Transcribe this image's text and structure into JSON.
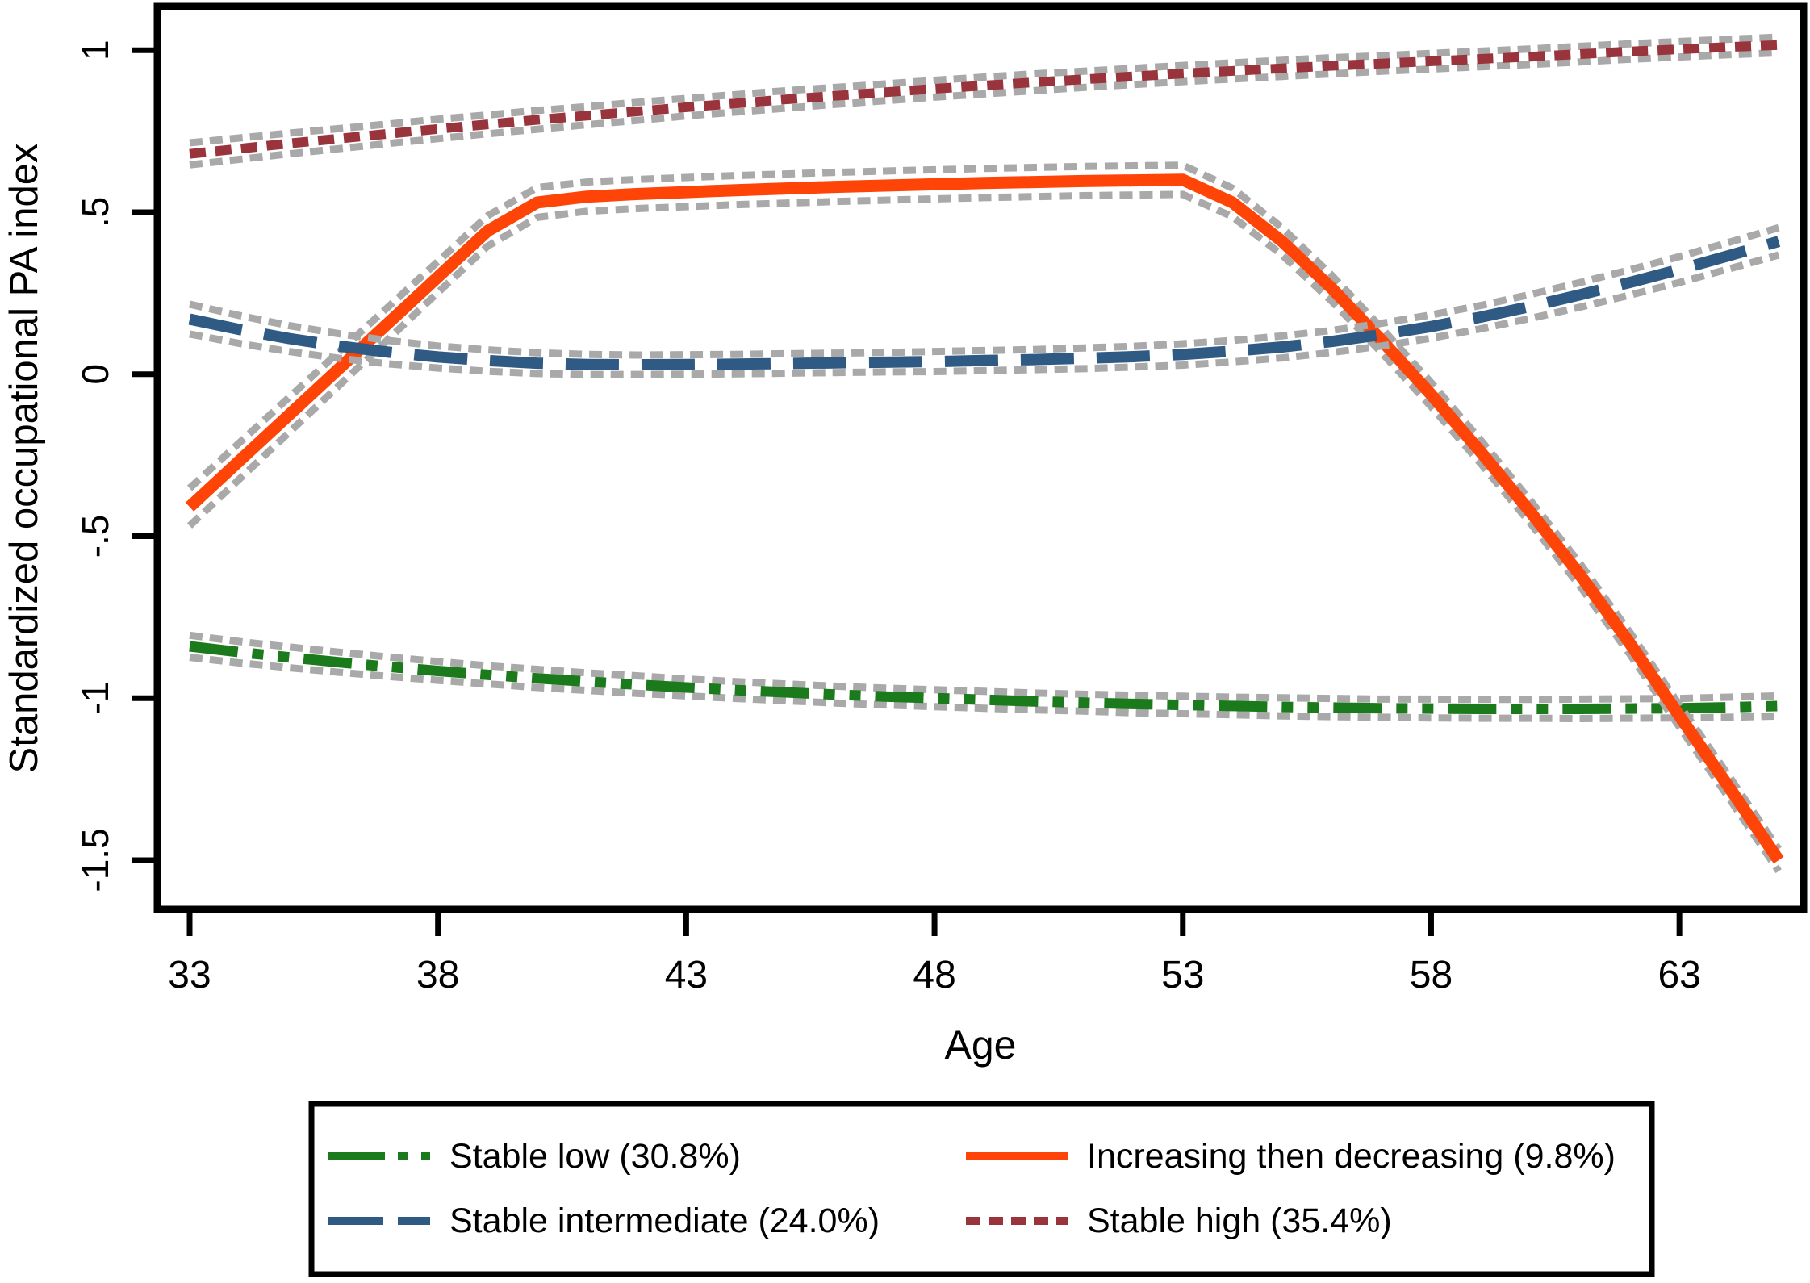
{
  "chart_data": {
    "type": "line",
    "title": "",
    "xlabel": "Age",
    "ylabel": "Standardized occupational PA index",
    "grid": false,
    "legend_position": "bottom",
    "xlim": [
      32.35,
      65.5
    ],
    "ylim": [
      -1.652,
      1.135
    ],
    "x_ticks": [
      33,
      38,
      43,
      48,
      53,
      58,
      63
    ],
    "y_ticks": [
      {
        "value": 1,
        "label": "1"
      },
      {
        "value": 0.5,
        "label": ".5"
      },
      {
        "value": 0,
        "label": "0"
      },
      {
        "value": -0.5,
        "label": "-.5"
      },
      {
        "value": -1,
        "label": "-1"
      },
      {
        "value": -1.5,
        "label": "-1.5"
      }
    ],
    "ci_style": {
      "color": "#a9a9a9",
      "width": 9,
      "dash": "16 9",
      "meaning": "95% confidence band (gray dashed)"
    },
    "ages": [
      33,
      34,
      35,
      36,
      37,
      38,
      39,
      40,
      41,
      42,
      43,
      44,
      45,
      46,
      47,
      48,
      49,
      50,
      51,
      52,
      53,
      54,
      55,
      56,
      57,
      58,
      59,
      60,
      61,
      62,
      63,
      64,
      65
    ],
    "series": [
      {
        "id": "stable_low",
        "label": "Stable low (30.8%)",
        "color": "#1b7a1b",
        "dash": "60 18 14 18 14 18",
        "width": 13,
        "values": [
          -0.84,
          -0.858,
          -0.874,
          -0.889,
          -0.903,
          -0.916,
          -0.928,
          -0.939,
          -0.949,
          -0.958,
          -0.967,
          -0.975,
          -0.982,
          -0.989,
          -0.995,
          -1.0,
          -1.005,
          -1.01,
          -1.014,
          -1.018,
          -1.021,
          -1.024,
          -1.027,
          -1.029,
          -1.031,
          -1.032,
          -1.033,
          -1.033,
          -1.033,
          -1.032,
          -1.031,
          -1.028,
          -1.024
        ],
        "ci": [
          0.034,
          0.033,
          0.032,
          0.031,
          0.03,
          0.029,
          0.028,
          0.028,
          0.027,
          0.027,
          0.026,
          0.026,
          0.026,
          0.026,
          0.026,
          0.026,
          0.026,
          0.026,
          0.026,
          0.027,
          0.027,
          0.027,
          0.028,
          0.028,
          0.028,
          0.029,
          0.029,
          0.029,
          0.03,
          0.03,
          0.03,
          0.031,
          0.031
        ]
      },
      {
        "id": "increasing_then_decreasing",
        "label": "Increasing then decreasing (9.8%)",
        "color": "#ff4408",
        "dash": "",
        "width": 15,
        "values": [
          -0.41,
          -0.268,
          -0.126,
          0.016,
          0.158,
          0.3,
          0.442,
          0.53,
          0.548,
          0.556,
          0.562,
          0.568,
          0.573,
          0.578,
          0.582,
          0.586,
          0.59,
          0.593,
          0.596,
          0.598,
          0.6,
          0.53,
          0.41,
          0.265,
          0.105,
          -0.063,
          -0.24,
          -0.425,
          -0.62,
          -0.83,
          -1.055,
          -1.275,
          -1.5
        ],
        "ci": [
          0.058,
          0.056,
          0.054,
          0.052,
          0.05,
          0.048,
          0.047,
          0.046,
          0.045,
          0.045,
          0.045,
          0.045,
          0.045,
          0.045,
          0.045,
          0.045,
          0.045,
          0.045,
          0.045,
          0.045,
          0.045,
          0.044,
          0.042,
          0.04,
          0.038,
          0.037,
          0.036,
          0.035,
          0.035,
          0.034,
          0.034,
          0.034,
          0.034
        ]
      },
      {
        "id": "stable_intermediate",
        "label": "Stable intermediate (24.0%)",
        "color": "#2e5a84",
        "dash": "66 28",
        "width": 14,
        "values": [
          0.17,
          0.138,
          0.11,
          0.087,
          0.068,
          0.053,
          0.042,
          0.034,
          0.03,
          0.029,
          0.03,
          0.031,
          0.033,
          0.035,
          0.037,
          0.039,
          0.042,
          0.045,
          0.049,
          0.054,
          0.061,
          0.071,
          0.084,
          0.101,
          0.122,
          0.147,
          0.176,
          0.209,
          0.245,
          0.283,
          0.323,
          0.366,
          0.41
        ],
        "ci": [
          0.046,
          0.043,
          0.04,
          0.038,
          0.036,
          0.034,
          0.033,
          0.032,
          0.031,
          0.03,
          0.03,
          0.03,
          0.03,
          0.03,
          0.03,
          0.031,
          0.031,
          0.031,
          0.032,
          0.032,
          0.033,
          0.033,
          0.034,
          0.034,
          0.035,
          0.036,
          0.036,
          0.037,
          0.038,
          0.039,
          0.04,
          0.041,
          0.042
        ]
      },
      {
        "id": "stable_high",
        "label": "Stable high (35.4%)",
        "color": "#9a343c",
        "dash": "20 12",
        "width": 12,
        "values": [
          0.68,
          0.696,
          0.712,
          0.727,
          0.742,
          0.757,
          0.771,
          0.785,
          0.798,
          0.811,
          0.824,
          0.836,
          0.848,
          0.859,
          0.87,
          0.881,
          0.891,
          0.901,
          0.91,
          0.919,
          0.928,
          0.936,
          0.944,
          0.952,
          0.959,
          0.966,
          0.973,
          0.98,
          0.988,
          0.996,
          1.003,
          1.01,
          1.016
        ],
        "ci": [
          0.034,
          0.033,
          0.032,
          0.031,
          0.03,
          0.03,
          0.029,
          0.029,
          0.028,
          0.028,
          0.027,
          0.027,
          0.027,
          0.026,
          0.026,
          0.026,
          0.026,
          0.026,
          0.025,
          0.025,
          0.025,
          0.025,
          0.025,
          0.025,
          0.024,
          0.024,
          0.024,
          0.024,
          0.024,
          0.024,
          0.024,
          0.024,
          0.024
        ]
      }
    ],
    "legend_rows": [
      [
        0,
        1
      ],
      [
        2,
        3
      ]
    ]
  }
}
